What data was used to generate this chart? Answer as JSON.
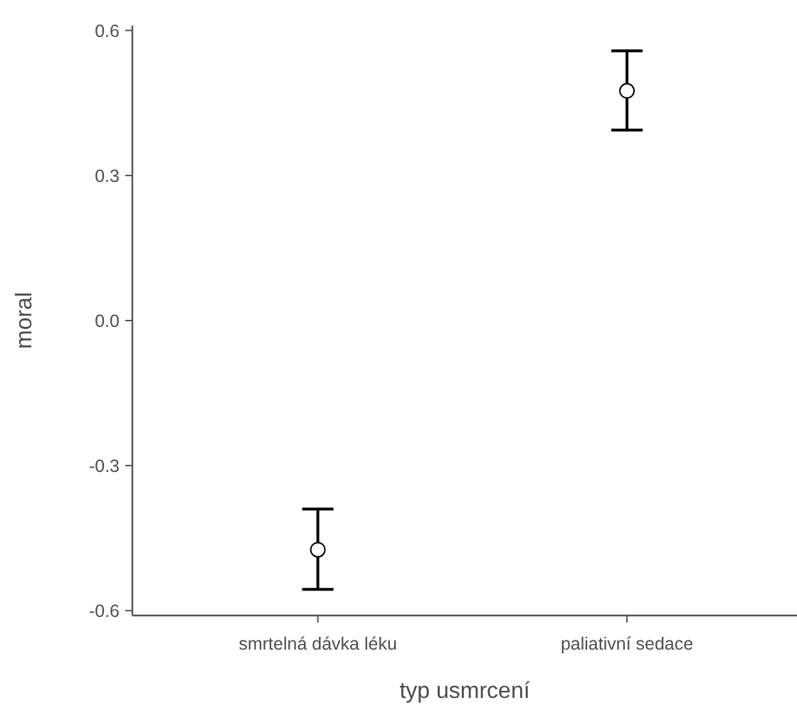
{
  "chart_data": {
    "type": "scatter",
    "xlabel": "typ usmrcení",
    "ylabel": "moral",
    "categories": [
      "smrtelná dávka léku",
      "paliativní sedace"
    ],
    "values": [
      -0.474,
      0.475
    ],
    "errors": [
      [
        -0.556,
        -0.39
      ],
      [
        0.394,
        0.558
      ]
    ],
    "color": "#000000",
    "marker": "circle",
    "ylim": [
      -0.61,
      0.61
    ],
    "yticks": [
      {
        "value": -0.6,
        "label": "-0.6"
      },
      {
        "value": -0.3,
        "label": "-0.3"
      },
      {
        "value": 0,
        "label": "0.0"
      },
      {
        "value": 0.3,
        "label": "0.3"
      },
      {
        "value": 0.6,
        "label": "0.6"
      }
    ],
    "grid": false
  }
}
